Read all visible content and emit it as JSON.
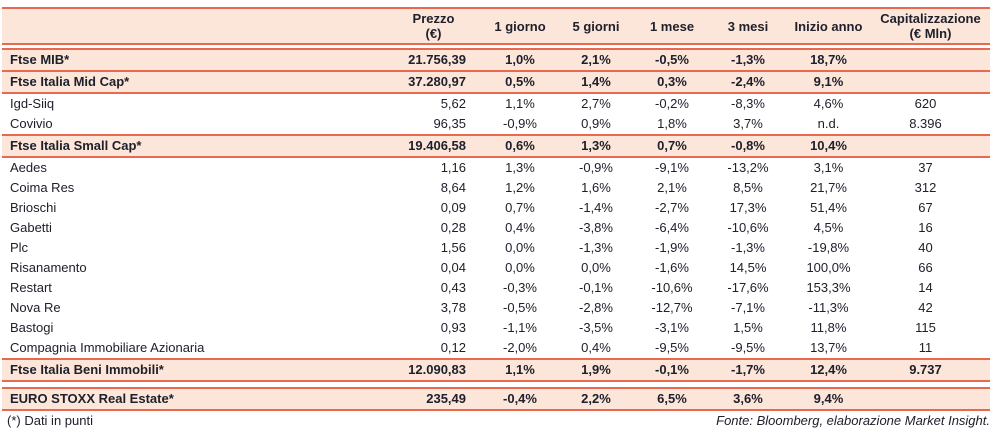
{
  "table": {
    "columns": [
      {
        "key": "name",
        "label": ""
      },
      {
        "key": "prezzo",
        "label": "Prezzo\n(€)"
      },
      {
        "key": "d1",
        "label": "1 giorno"
      },
      {
        "key": "d5",
        "label": "5 giorni"
      },
      {
        "key": "m1",
        "label": "1 mese"
      },
      {
        "key": "m3",
        "label": "3 mesi"
      },
      {
        "key": "ytd",
        "label": "Inizio anno"
      },
      {
        "key": "cap",
        "label": "Capitalizzazione\n(€ Mln)"
      }
    ],
    "rows": [
      {
        "type": "spacer",
        "h": 3
      },
      {
        "type": "index",
        "name": "Ftse MIB*",
        "prezzo": "21.756,39",
        "d1": "1,0%",
        "d5": "2,1%",
        "m1": "-0,5%",
        "m3": "-1,3%",
        "ytd": "18,7%",
        "cap": ""
      },
      {
        "type": "index",
        "name": "Ftse Italia Mid Cap*",
        "prezzo": "37.280,97",
        "d1": "0,5%",
        "d5": "1,4%",
        "m1": "0,3%",
        "m3": "-2,4%",
        "ytd": "9,1%",
        "cap": ""
      },
      {
        "type": "stock",
        "name": "Igd-Siiq",
        "prezzo": "5,62",
        "d1": "1,1%",
        "d5": "2,7%",
        "m1": "-0,2%",
        "m3": "-8,3%",
        "ytd": "4,6%",
        "cap": "620"
      },
      {
        "type": "stock",
        "name": "Covivio",
        "prezzo": "96,35",
        "d1": "-0,9%",
        "d5": "0,9%",
        "m1": "1,8%",
        "m3": "3,7%",
        "ytd": "n.d.",
        "cap": "8.396"
      },
      {
        "type": "index",
        "name": "Ftse Italia Small Cap*",
        "prezzo": "19.406,58",
        "d1": "0,6%",
        "d5": "1,3%",
        "m1": "0,7%",
        "m3": "-0,8%",
        "ytd": "10,4%",
        "cap": ""
      },
      {
        "type": "stock",
        "name": "Aedes",
        "prezzo": "1,16",
        "d1": "1,3%",
        "d5": "-0,9%",
        "m1": "-9,1%",
        "m3": "-13,2%",
        "ytd": "3,1%",
        "cap": "37"
      },
      {
        "type": "stock",
        "name": "Coima Res",
        "prezzo": "8,64",
        "d1": "1,2%",
        "d5": "1,6%",
        "m1": "2,1%",
        "m3": "8,5%",
        "ytd": "21,7%",
        "cap": "312"
      },
      {
        "type": "stock",
        "name": "Brioschi",
        "prezzo": "0,09",
        "d1": "0,7%",
        "d5": "-1,4%",
        "m1": "-2,7%",
        "m3": "17,3%",
        "ytd": "51,4%",
        "cap": "67"
      },
      {
        "type": "stock",
        "name": "Gabetti",
        "prezzo": "0,28",
        "d1": "0,4%",
        "d5": "-3,8%",
        "m1": "-6,4%",
        "m3": "-10,6%",
        "ytd": "4,5%",
        "cap": "16"
      },
      {
        "type": "stock",
        "name": "Plc",
        "prezzo": "1,56",
        "d1": "0,0%",
        "d5": "-1,3%",
        "m1": "-1,9%",
        "m3": "-1,3%",
        "ytd": "-19,8%",
        "cap": "40"
      },
      {
        "type": "stock",
        "name": "Risanamento",
        "prezzo": "0,04",
        "d1": "0,0%",
        "d5": "0,0%",
        "m1": "-1,6%",
        "m3": "14,5%",
        "ytd": "100,0%",
        "cap": "66"
      },
      {
        "type": "stock",
        "name": "Restart",
        "prezzo": "0,43",
        "d1": "-0,3%",
        "d5": "-0,1%",
        "m1": "-10,6%",
        "m3": "-17,6%",
        "ytd": "153,3%",
        "cap": "14"
      },
      {
        "type": "stock",
        "name": "Nova Re",
        "prezzo": "3,78",
        "d1": "-0,5%",
        "d5": "-2,8%",
        "m1": "-12,7%",
        "m3": "-7,1%",
        "ytd": "-11,3%",
        "cap": "42"
      },
      {
        "type": "stock",
        "name": "Bastogi",
        "prezzo": "0,93",
        "d1": "-1,1%",
        "d5": "-3,5%",
        "m1": "-3,1%",
        "m3": "1,5%",
        "ytd": "11,8%",
        "cap": "115"
      },
      {
        "type": "stock",
        "name": "Compagnia Immobiliare Azionaria",
        "prezzo": "0,12",
        "d1": "-2,0%",
        "d5": "0,4%",
        "m1": "-9,5%",
        "m3": "-9,5%",
        "ytd": "13,7%",
        "cap": "11"
      },
      {
        "type": "index",
        "name": "Ftse Italia Beni Immobili*",
        "prezzo": "12.090,83",
        "d1": "1,1%",
        "d5": "1,9%",
        "m1": "-0,1%",
        "m3": "-1,7%",
        "ytd": "12,4%",
        "cap": "9.737"
      },
      {
        "type": "spacer",
        "h": 5
      },
      {
        "type": "index",
        "name": "EURO STOXX Real Estate*",
        "prezzo": "235,49",
        "d1": "-0,4%",
        "d5": "2,2%",
        "m1": "6,5%",
        "m3": "3,6%",
        "ytd": "9,4%",
        "cap": ""
      }
    ]
  },
  "footer": {
    "note": "(*) Dati in punti",
    "source": "Fonte: Bloomberg, elaborazione Market Insight."
  },
  "colors": {
    "accent": "#E96850",
    "row_highlight": "#FBE6D9",
    "text": "#20202C"
  }
}
